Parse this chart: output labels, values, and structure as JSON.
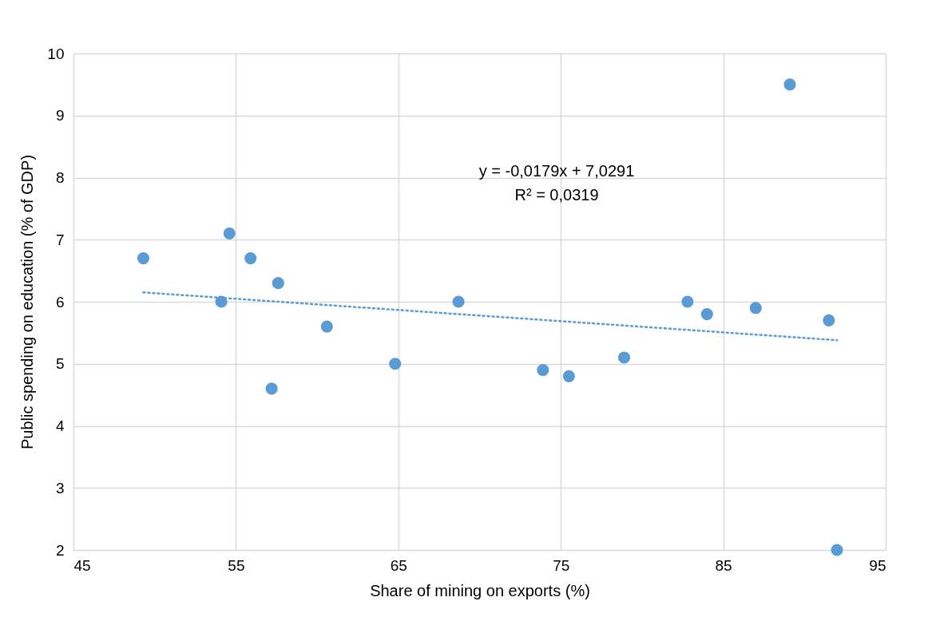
{
  "chart_data": {
    "type": "scatter",
    "xlabel": "Share of mining on exports (%)",
    "ylabel": "Public spending on education (% of GDP)",
    "xlim": [
      45,
      95
    ],
    "xticks": [
      45,
      55,
      65,
      75,
      85,
      95
    ],
    "ylim": [
      2,
      10
    ],
    "yticks": [
      2,
      3,
      4,
      5,
      6,
      7,
      8,
      9,
      10
    ],
    "grid": true,
    "annotations": [
      "y = -0,0179x + 7,0291",
      "R² = 0,0319"
    ],
    "series": [
      {
        "color": "#5b9bd5",
        "marker": "circle",
        "x": [
          49.3,
          54.6,
          55.9,
          57.6,
          54.1,
          60.6,
          57.2,
          64.8,
          68.7,
          73.9,
          75.5,
          78.9,
          82.8,
          84.0,
          87.0,
          89.1,
          91.5,
          92.0
        ],
        "values": [
          6.7,
          7.1,
          6.7,
          6.3,
          6.0,
          5.6,
          4.6,
          5.0,
          6.0,
          4.9,
          4.8,
          5.1,
          6.0,
          5.8,
          5.9,
          9.5,
          5.7,
          2.0
        ]
      },
      {
        "type": "line",
        "color": "#5b9bd5",
        "line_style": "dotted",
        "marker": "none",
        "x": [
          49.3,
          92
        ],
        "values": [
          6.15,
          5.38
        ]
      }
    ]
  }
}
